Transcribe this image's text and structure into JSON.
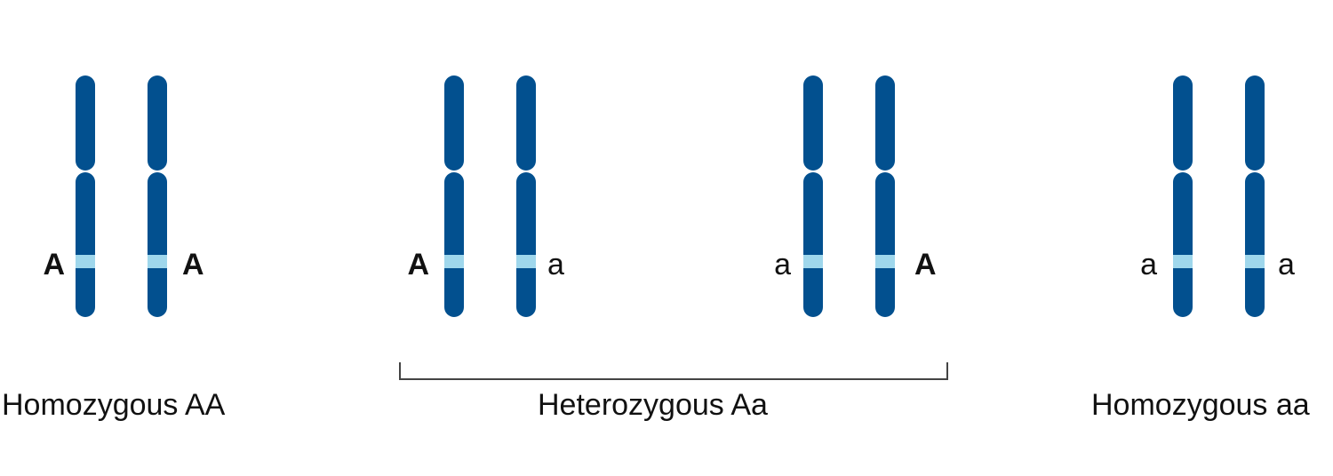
{
  "diagram": {
    "colors": {
      "chromosome": "#02508f",
      "gene_band": "#9fd7ec",
      "bracket": "#444444"
    },
    "pairs": [
      {
        "caption": "Homozygous AA",
        "chromosomes": [
          {
            "allele": "A",
            "bold": true
          },
          {
            "allele": "A",
            "bold": true
          }
        ]
      },
      {
        "caption": "",
        "chromosomes": [
          {
            "allele": "A",
            "bold": true
          },
          {
            "allele": "a",
            "bold": false
          }
        ]
      },
      {
        "caption": "",
        "chromosomes": [
          {
            "allele": "a",
            "bold": false
          },
          {
            "allele": "A",
            "bold": true
          }
        ]
      },
      {
        "caption": "Homozygous aa",
        "chromosomes": [
          {
            "allele": "a",
            "bold": false
          },
          {
            "allele": "a",
            "bold": false
          }
        ]
      }
    ],
    "bracket_caption": "Heterozygous Aa"
  }
}
